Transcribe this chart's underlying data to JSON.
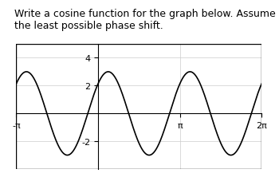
{
  "title": "Write a cosine function for the graph below. Assume the least possible phase shift.",
  "amplitude": 3,
  "B": 2,
  "phase_shift": 0.7853981633974483,
  "xmin": -3.14159265358979,
  "xmax": 6.28318530717959,
  "ymin": -4,
  "ymax": 5,
  "x_ticks_labels": [
    "-π",
    "π",
    "2π"
  ],
  "x_ticks_values": [
    -3.14159265358979,
    3.14159265358979,
    6.28318530717959
  ],
  "y_ticks_values": [
    -2,
    2,
    4
  ],
  "y_tick_labels": [
    "-2",
    "2",
    "4"
  ],
  "line_color": "#000000",
  "bg_color": "#ffffff",
  "grid_color": "#cccccc",
  "title_fontsize": 9,
  "tick_fontsize": 8
}
